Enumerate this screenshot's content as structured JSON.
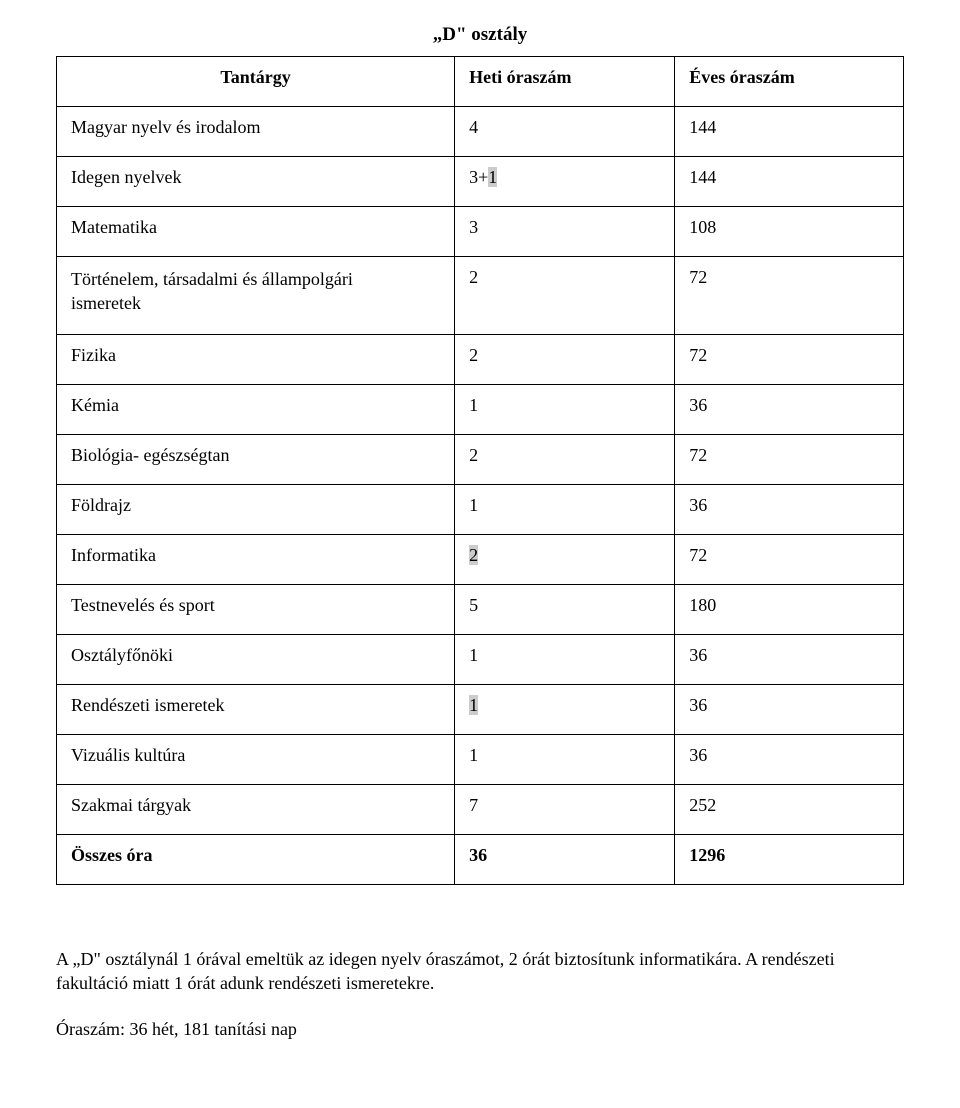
{
  "title": "„D\" osztály",
  "table": {
    "columns": [
      {
        "label": "Tantárgy",
        "align": "center"
      },
      {
        "label": "Heti óraszám",
        "align": "left"
      },
      {
        "label": "Éves óraszám",
        "align": "left"
      }
    ],
    "rows": [
      {
        "subject": "Magyar nyelv és irodalom",
        "weekly": "4",
        "yearly": "144"
      },
      {
        "subject": "Idegen nyelvek",
        "weekly_prefix": "3+",
        "weekly_hl": "1",
        "yearly": "144"
      },
      {
        "subject": "Matematika",
        "weekly": "3",
        "yearly": "108"
      },
      {
        "subject_lines": [
          "Történelem, társadalmi és állampolgári",
          "ismeretek"
        ],
        "weekly": "2",
        "yearly": "72"
      },
      {
        "subject": "Fizika",
        "weekly": "2",
        "yearly": "72"
      },
      {
        "subject": "Kémia",
        "weekly": "1",
        "yearly": "36"
      },
      {
        "subject": "Biológia- egészségtan",
        "weekly": "2",
        "yearly": "72"
      },
      {
        "subject": "Földrajz",
        "weekly": "1",
        "yearly": "36"
      },
      {
        "subject": "Informatika",
        "weekly_hl": "2",
        "yearly": "72"
      },
      {
        "subject": "Testnevelés és sport",
        "weekly": "5",
        "yearly": "180"
      },
      {
        "subject": "Osztályfőnöki",
        "weekly": "1",
        "yearly": "36"
      },
      {
        "subject": "Rendészeti ismeretek",
        "weekly_hl": "1",
        "yearly": "36"
      },
      {
        "subject": "Vizuális kultúra",
        "weekly": "1",
        "yearly": "36"
      },
      {
        "subject": "Szakmai tárgyak",
        "weekly": "7",
        "yearly": "252"
      },
      {
        "subject": "Összes óra",
        "weekly": "36",
        "yearly": "1296",
        "total": true
      }
    ]
  },
  "notes": {
    "p1": "A „D\" osztálynál 1 órával emeltük az idegen nyelv óraszámot, 2 órát biztosítunk informatikára. A rendészeti fakultáció miatt 1 órát adunk rendészeti ismeretekre.",
    "p2": "Óraszám: 36 hét, 181 tanítási nap"
  },
  "style": {
    "highlight_bg": "#cccccc",
    "border_color": "#000000",
    "font_family": "Times New Roman",
    "base_font_size_pt": 13
  }
}
